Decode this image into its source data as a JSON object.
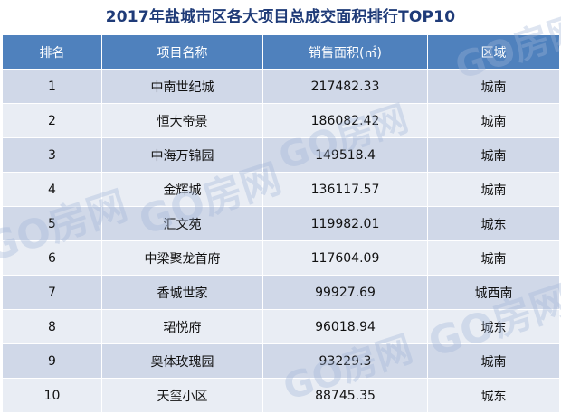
{
  "title": "2017年盐城市区各大项目总成交面积排行TOP10",
  "table": {
    "headers": {
      "rank": "排名",
      "name": "项目名称",
      "area": "销售面积(㎡)",
      "region": "区域"
    },
    "rows": [
      {
        "rank": "1",
        "name": "中南世纪城",
        "area": "217482.33",
        "region": "城南"
      },
      {
        "rank": "2",
        "name": "恒大帝景",
        "area": "186082.42",
        "region": "城南"
      },
      {
        "rank": "3",
        "name": "中海万锦园",
        "area": "149518.4",
        "region": "城南"
      },
      {
        "rank": "4",
        "name": "金辉城",
        "area": "136117.57",
        "region": "城南"
      },
      {
        "rank": "5",
        "name": "汇文苑",
        "area": "119982.01",
        "region": "城东"
      },
      {
        "rank": "6",
        "name": "中梁聚龙首府",
        "area": "117604.09",
        "region": "城南"
      },
      {
        "rank": "7",
        "name": "香城世家",
        "area": "99927.69",
        "region": "城西南"
      },
      {
        "rank": "8",
        "name": "珺悦府",
        "area": "96018.94",
        "region": "城东"
      },
      {
        "rank": "9",
        "name": "奥体玫瑰园",
        "area": "93229.3",
        "region": "城南"
      },
      {
        "rank": "10",
        "name": "天玺小区",
        "area": "88745.35",
        "region": "城东"
      }
    ]
  },
  "watermark": "GO房网",
  "colors": {
    "header_bg": "#4f81bd",
    "row_odd": "#d0d8e8",
    "row_even": "#e9edf4",
    "title": "#1f3b78"
  }
}
